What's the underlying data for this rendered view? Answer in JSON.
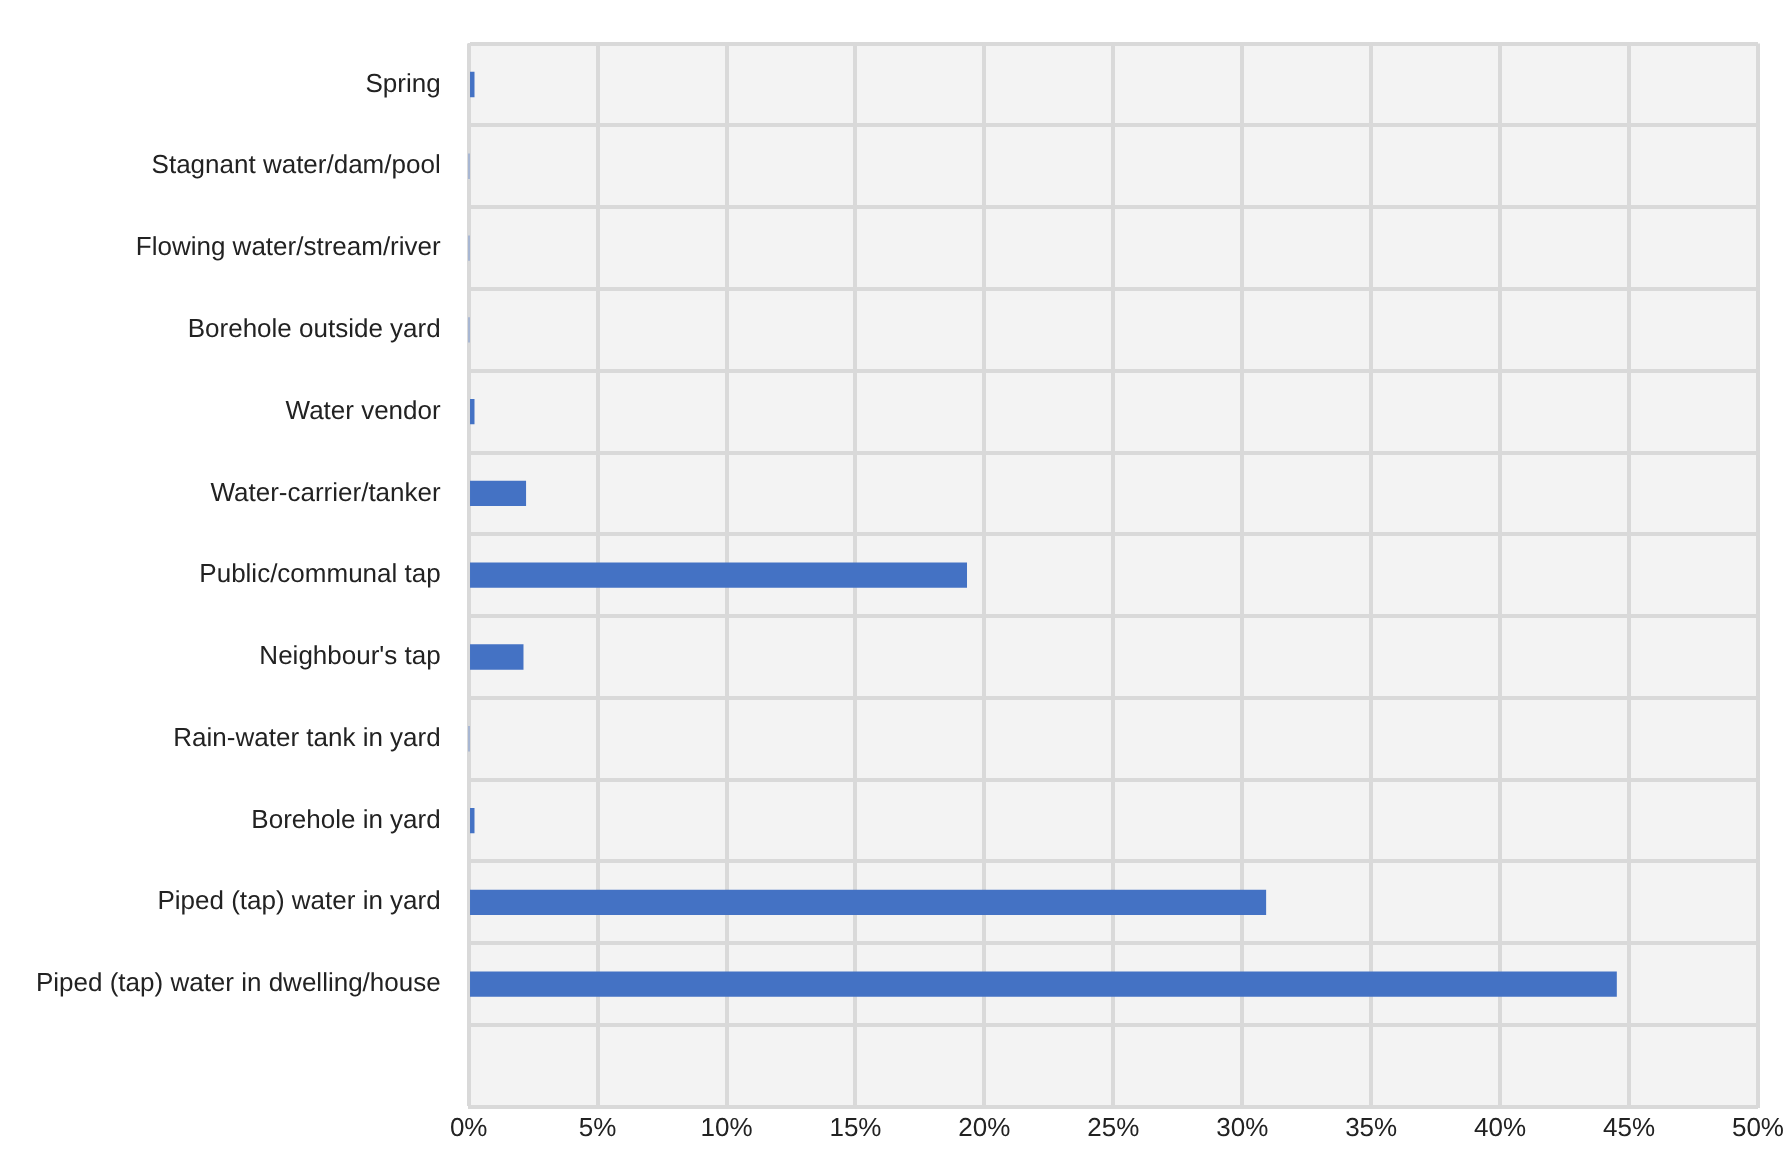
{
  "chart_data": {
    "type": "bar",
    "orientation": "horizontal",
    "categories": [
      "Spring",
      "Stagnant water/dam/pool",
      "Flowing water/stream/river",
      "Borehole outside yard",
      "Water vendor",
      "Water-carrier/tanker",
      "Public/communal tap",
      "Neighbour's tap",
      "Rain-water tank in yard",
      "Borehole in yard",
      "Piped (tap) water in yard",
      "Piped (tap) water in dwelling/house",
      null
    ],
    "values": [
      0.2,
      0,
      0,
      0,
      0.2,
      2.2,
      19.3,
      2.1,
      0,
      0.2,
      30.9,
      44.5,
      null
    ],
    "color": "#4472c4",
    "xlim": [
      0,
      50
    ],
    "xticks": [
      {
        "value": 0,
        "label": "0%"
      },
      {
        "value": 5,
        "label": "5%"
      },
      {
        "value": 10,
        "label": "10%"
      },
      {
        "value": 15,
        "label": "15%"
      },
      {
        "value": 20,
        "label": "20%"
      },
      {
        "value": 25,
        "label": "25%"
      },
      {
        "value": 30,
        "label": "30%"
      },
      {
        "value": 35,
        "label": "35%"
      },
      {
        "value": 40,
        "label": "40%"
      },
      {
        "value": 45,
        "label": "45%"
      },
      {
        "value": 50,
        "label": "50%"
      }
    ],
    "grid": true,
    "legend": false
  }
}
